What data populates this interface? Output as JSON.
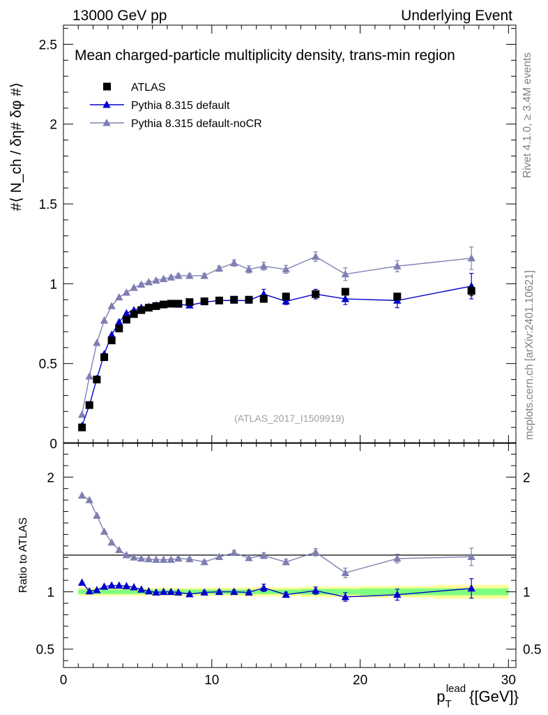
{
  "header": {
    "left": "13000 GeV pp",
    "right": "Underlying Event"
  },
  "side_labels": {
    "rivet": "Rivet 4.1.0, ≥ 3.4M events",
    "mcplots": "mcplots.cern.ch [arXiv:2401.10621]"
  },
  "chart_data": [
    {
      "panel": "main",
      "type": "scatter",
      "title": "Mean charged-particle multiplicity density, trans-min region",
      "watermark": "(ATLAS_2017_I1509919)",
      "ylabel": "#⟨ N_ch / δη# δφ #⟩",
      "ylim": [
        0,
        2.62
      ],
      "xlim": [
        0,
        30.5
      ],
      "yticks": [
        0,
        0.5,
        1,
        1.5,
        2,
        2.5
      ],
      "ytick_labels": [
        "0",
        "0.5",
        "1",
        "1.5",
        "2",
        "2.5"
      ],
      "x": [
        1.25,
        1.75,
        2.25,
        2.75,
        3.25,
        3.75,
        4.25,
        4.75,
        5.25,
        5.75,
        6.25,
        6.75,
        7.25,
        7.75,
        8.5,
        9.5,
        10.5,
        11.5,
        12.5,
        13.5,
        15,
        17,
        19,
        22.5,
        27.5
      ],
      "series": [
        {
          "name": "ATLAS",
          "color": "#000000",
          "marker": "square",
          "values": [
            0.1,
            0.24,
            0.4,
            0.54,
            0.645,
            0.72,
            0.775,
            0.81,
            0.835,
            0.85,
            0.86,
            0.87,
            0.875,
            0.875,
            0.885,
            0.89,
            0.895,
            0.9,
            0.9,
            0.905,
            0.92,
            0.935,
            0.95,
            0.92,
            0.955
          ],
          "errors": [
            0.005,
            0.005,
            0.005,
            0.005,
            0.005,
            0.005,
            0.005,
            0.005,
            0.005,
            0.005,
            0.005,
            0.005,
            0.005,
            0.005,
            0.005,
            0.005,
            0.005,
            0.005,
            0.005,
            0.005,
            0.01,
            0.01,
            0.02,
            0.02,
            0.03
          ]
        },
        {
          "name": "Pythia 8.315 default",
          "color": "#0000cc",
          "marker": "triangle",
          "values": [
            0.11,
            0.24,
            0.405,
            0.56,
            0.68,
            0.76,
            0.815,
            0.835,
            0.85,
            0.855,
            0.865,
            0.87,
            0.875,
            0.87,
            0.865,
            0.885,
            0.895,
            0.895,
            0.895,
            0.935,
            0.89,
            0.935,
            0.905,
            0.895,
            0.985
          ],
          "errors": [
            0.004,
            0.004,
            0.004,
            0.004,
            0.005,
            0.005,
            0.005,
            0.006,
            0.006,
            0.006,
            0.007,
            0.007,
            0.008,
            0.008,
            0.009,
            0.01,
            0.012,
            0.014,
            0.016,
            0.03,
            0.02,
            0.03,
            0.035,
            0.045,
            0.08
          ]
        },
        {
          "name": "Pythia 8.315 default-noCR",
          "color": "#7f7fb2",
          "marker": "triangle",
          "values": [
            0.18,
            0.42,
            0.63,
            0.77,
            0.86,
            0.915,
            0.945,
            0.975,
            0.995,
            1.01,
            1.02,
            1.03,
            1.04,
            1.05,
            1.05,
            1.05,
            1.095,
            1.13,
            1.09,
            1.11,
            1.09,
            1.17,
            1.06,
            1.11,
            1.16
          ],
          "errors": [
            0.004,
            0.004,
            0.005,
            0.005,
            0.006,
            0.006,
            0.007,
            0.007,
            0.008,
            0.008,
            0.009,
            0.009,
            0.01,
            0.011,
            0.012,
            0.014,
            0.016,
            0.02,
            0.022,
            0.025,
            0.025,
            0.03,
            0.04,
            0.035,
            0.07
          ]
        }
      ]
    },
    {
      "panel": "ratio",
      "type": "scatter",
      "ylabel": "Ratio to ATLAS",
      "xlabel_base": "p",
      "xlabel_sub": "T",
      "xlabel_sup": "lead",
      "xlabel_unit": "{[GeV]}",
      "ylim": [
        0.34,
        2.3
      ],
      "xlim": [
        0,
        30.5
      ],
      "yticks": [
        0.5,
        1,
        2
      ],
      "ytick_labels": [
        "0.5",
        "1",
        "2"
      ],
      "xticks": [
        0,
        10,
        20,
        30
      ],
      "xtick_labels": [
        "0",
        "10",
        "20",
        "30"
      ],
      "x": [
        1.25,
        1.75,
        2.25,
        2.75,
        3.25,
        3.75,
        4.25,
        4.75,
        5.25,
        5.75,
        6.25,
        6.75,
        7.25,
        7.75,
        8.5,
        9.5,
        10.5,
        11.5,
        12.5,
        13.5,
        15,
        17,
        19,
        22.5,
        27.5
      ],
      "band": {
        "bins": [
          [
            1,
            1.5
          ],
          [
            1.5,
            2
          ],
          [
            2,
            2.5
          ],
          [
            2.5,
            3
          ],
          [
            3,
            3.5
          ],
          [
            3.5,
            4
          ],
          [
            4,
            4.5
          ],
          [
            4.5,
            5
          ],
          [
            5,
            5.5
          ],
          [
            5.5,
            6
          ],
          [
            6,
            6.5
          ],
          [
            6.5,
            7
          ],
          [
            7,
            7.5
          ],
          [
            7.5,
            8
          ],
          [
            8,
            9
          ],
          [
            9,
            10
          ],
          [
            10,
            11
          ],
          [
            11,
            12
          ],
          [
            12,
            13
          ],
          [
            13,
            14
          ],
          [
            14,
            16
          ],
          [
            16,
            18
          ],
          [
            18,
            20
          ],
          [
            20,
            25
          ],
          [
            25,
            30
          ]
        ],
        "stat_half": [
          0.02,
          0.02,
          0.02,
          0.02,
          0.02,
          0.02,
          0.02,
          0.02,
          0.02,
          0.02,
          0.02,
          0.02,
          0.02,
          0.02,
          0.02,
          0.02,
          0.02,
          0.02,
          0.02,
          0.02,
          0.02,
          0.025,
          0.025,
          0.03,
          0.03
        ],
        "total_half": [
          0.035,
          0.035,
          0.035,
          0.035,
          0.035,
          0.035,
          0.035,
          0.035,
          0.035,
          0.035,
          0.035,
          0.035,
          0.035,
          0.035,
          0.035,
          0.035,
          0.035,
          0.035,
          0.04,
          0.04,
          0.04,
          0.045,
          0.045,
          0.05,
          0.06
        ],
        "stat_color": "#7fff7f",
        "total_color": "#ffff99"
      },
      "series": [
        {
          "name": "Pythia 8.315 default",
          "color": "#0000cc",
          "values": [
            1.08,
            1.005,
            1.015,
            1.045,
            1.055,
            1.055,
            1.05,
            1.04,
            1.02,
            1.005,
            0.995,
            1.0,
            1.0,
            0.995,
            0.98,
            0.995,
            1.0,
            1.0,
            0.995,
            1.035,
            0.975,
            1.01,
            0.955,
            0.975,
            1.03
          ],
          "errors": [
            0.005,
            0.005,
            0.005,
            0.005,
            0.006,
            0.006,
            0.006,
            0.007,
            0.007,
            0.007,
            0.008,
            0.008,
            0.009,
            0.009,
            0.01,
            0.012,
            0.014,
            0.016,
            0.018,
            0.032,
            0.022,
            0.032,
            0.038,
            0.048,
            0.085
          ]
        },
        {
          "name": "Pythia 8.315 default-noCR",
          "color": "#7f7fb2",
          "values": [
            1.84,
            1.8,
            1.665,
            1.525,
            1.43,
            1.365,
            1.32,
            1.3,
            1.29,
            1.285,
            1.28,
            1.28,
            1.28,
            1.29,
            1.285,
            1.26,
            1.305,
            1.34,
            1.295,
            1.315,
            1.26,
            1.345,
            1.165,
            1.29,
            1.305
          ],
          "errors": [
            0.005,
            0.005,
            0.005,
            0.005,
            0.006,
            0.006,
            0.007,
            0.007,
            0.008,
            0.008,
            0.009,
            0.009,
            0.01,
            0.011,
            0.012,
            0.014,
            0.016,
            0.02,
            0.022,
            0.025,
            0.025,
            0.032,
            0.042,
            0.038,
            0.075
          ]
        }
      ]
    }
  ]
}
